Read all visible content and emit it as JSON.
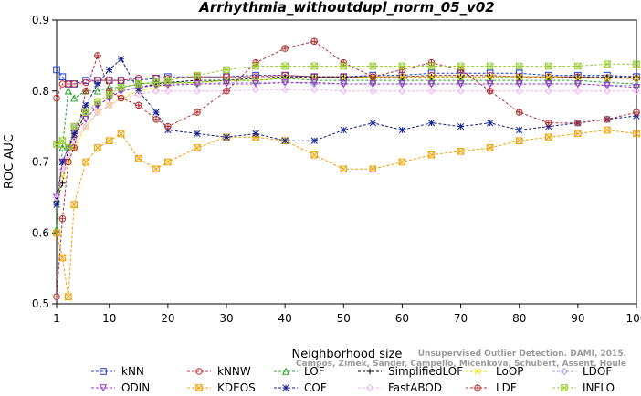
{
  "chart_data": {
    "type": "line",
    "title": "Arrhythmia_withoutdupl_norm_05_v02",
    "xlabel": "Neighborhood size",
    "ylabel": "ROC AUC",
    "xlim": [
      1,
      100
    ],
    "ylim": [
      0.5,
      0.9
    ],
    "xticks": [
      1,
      10,
      20,
      30,
      40,
      50,
      60,
      70,
      80,
      90,
      100
    ],
    "yticks": [
      0.5,
      0.6,
      0.7,
      0.8,
      0.9
    ],
    "xtick_labels": [
      "1",
      "10",
      "20",
      "30",
      "40",
      "50",
      "60",
      "70",
      "80",
      "90",
      "100"
    ],
    "ytick_labels": [
      "0.5",
      "0.6",
      "0.7",
      "0.8",
      "0.9"
    ],
    "grid": false,
    "legend_position": "bottom",
    "x": [
      1,
      2,
      3,
      4,
      6,
      8,
      10,
      12,
      15,
      18,
      20,
      25,
      30,
      35,
      40,
      45,
      50,
      55,
      60,
      65,
      70,
      75,
      80,
      85,
      90,
      95,
      100
    ],
    "series": [
      {
        "name": "kNN",
        "color": "#1f3fd6",
        "marker": "square",
        "values": [
          0.83,
          0.82,
          0.81,
          0.81,
          0.815,
          0.815,
          0.815,
          0.815,
          0.815,
          0.818,
          0.82,
          0.82,
          0.82,
          0.822,
          0.822,
          0.82,
          0.82,
          0.822,
          0.822,
          0.825,
          0.825,
          0.825,
          0.825,
          0.822,
          0.822,
          0.822,
          0.82
        ]
      },
      {
        "name": "kNNW",
        "color": "#d62728",
        "marker": "circle",
        "values": [
          0.79,
          0.81,
          0.81,
          0.81,
          0.812,
          0.815,
          0.815,
          0.815,
          0.818,
          0.818,
          0.818,
          0.82,
          0.82,
          0.82,
          0.822,
          0.82,
          0.82,
          0.82,
          0.82,
          0.822,
          0.822,
          0.822,
          0.82,
          0.82,
          0.82,
          0.818,
          0.818
        ]
      },
      {
        "name": "LOF",
        "color": "#2ca02c",
        "marker": "triangle-up",
        "values": [
          0.605,
          0.72,
          0.8,
          0.79,
          0.8,
          0.8,
          0.805,
          0.805,
          0.81,
          0.812,
          0.812,
          0.812,
          0.815,
          0.815,
          0.818,
          0.815,
          0.815,
          0.815,
          0.815,
          0.815,
          0.815,
          0.815,
          0.815,
          0.815,
          0.815,
          0.812,
          0.81
        ]
      },
      {
        "name": "SimplifiedLOF",
        "color": "#000000",
        "marker": "plus",
        "values": [
          0.645,
          0.67,
          0.72,
          0.735,
          0.77,
          0.78,
          0.79,
          0.8,
          0.805,
          0.81,
          0.812,
          0.815,
          0.815,
          0.818,
          0.82,
          0.82,
          0.82,
          0.82,
          0.82,
          0.82,
          0.82,
          0.82,
          0.82,
          0.82,
          0.82,
          0.82,
          0.82
        ]
      },
      {
        "name": "LoOP",
        "color": "#e8e000",
        "marker": "x",
        "values": [
          0.64,
          0.68,
          0.7,
          0.72,
          0.75,
          0.77,
          0.78,
          0.79,
          0.8,
          0.805,
          0.81,
          0.812,
          0.815,
          0.815,
          0.818,
          0.818,
          0.818,
          0.82,
          0.82,
          0.82,
          0.82,
          0.82,
          0.82,
          0.82,
          0.818,
          0.818,
          0.818
        ]
      },
      {
        "name": "LDOF",
        "color": "#a0a0e0",
        "marker": "diamond",
        "values": [
          0.64,
          0.7,
          0.72,
          0.75,
          0.77,
          0.78,
          0.79,
          0.8,
          0.805,
          0.808,
          0.81,
          0.81,
          0.812,
          0.812,
          0.812,
          0.81,
          0.81,
          0.81,
          0.81,
          0.81,
          0.81,
          0.81,
          0.81,
          0.81,
          0.81,
          0.808,
          0.808
        ]
      },
      {
        "name": "ODIN",
        "color": "#9b30c9",
        "marker": "triangle-down",
        "values": [
          0.65,
          0.7,
          0.72,
          0.74,
          0.76,
          0.78,
          0.79,
          0.8,
          0.805,
          0.808,
          0.808,
          0.81,
          0.81,
          0.81,
          0.812,
          0.812,
          0.81,
          0.81,
          0.81,
          0.81,
          0.81,
          0.81,
          0.81,
          0.81,
          0.81,
          0.808,
          0.805
        ]
      },
      {
        "name": "KDEOS",
        "color": "#f0a000",
        "marker": "square-x",
        "values": [
          0.6,
          0.565,
          0.51,
          0.64,
          0.7,
          0.72,
          0.73,
          0.74,
          0.705,
          0.69,
          0.7,
          0.72,
          0.735,
          0.735,
          0.73,
          0.71,
          0.69,
          0.69,
          0.7,
          0.71,
          0.715,
          0.72,
          0.73,
          0.735,
          0.74,
          0.745,
          0.74
        ]
      },
      {
        "name": "COF",
        "color": "#10208f",
        "marker": "asterisk",
        "values": [
          0.64,
          0.7,
          0.72,
          0.74,
          0.78,
          0.81,
          0.83,
          0.845,
          0.8,
          0.77,
          0.745,
          0.74,
          0.735,
          0.74,
          0.73,
          0.73,
          0.745,
          0.755,
          0.745,
          0.755,
          0.75,
          0.755,
          0.745,
          0.75,
          0.755,
          0.76,
          0.765
        ]
      },
      {
        "name": "FastABOD",
        "color": "#f0b0f0",
        "marker": "diamond",
        "values": [
          0.65,
          0.69,
          0.71,
          0.73,
          0.75,
          0.77,
          0.78,
          0.79,
          0.795,
          0.8,
          0.8,
          0.8,
          0.8,
          0.802,
          0.802,
          0.802,
          0.8,
          0.8,
          0.8,
          0.8,
          0.8,
          0.8,
          0.8,
          0.8,
          0.8,
          0.8,
          0.8
        ]
      },
      {
        "name": "LDF",
        "color": "#b03030",
        "marker": "circle-plus",
        "values": [
          0.51,
          0.62,
          0.7,
          0.72,
          0.8,
          0.85,
          0.8,
          0.79,
          0.78,
          0.76,
          0.75,
          0.77,
          0.8,
          0.84,
          0.86,
          0.87,
          0.84,
          0.82,
          0.83,
          0.84,
          0.83,
          0.8,
          0.77,
          0.755,
          0.755,
          0.76,
          0.77
        ]
      },
      {
        "name": "INFLO",
        "color": "#9acd32",
        "marker": "star-box",
        "values": [
          0.725,
          0.73,
          0.72,
          0.75,
          0.77,
          0.785,
          0.795,
          0.805,
          0.81,
          0.812,
          0.815,
          0.822,
          0.83,
          0.835,
          0.835,
          0.835,
          0.835,
          0.835,
          0.835,
          0.835,
          0.835,
          0.835,
          0.835,
          0.835,
          0.835,
          0.838,
          0.838
        ]
      }
    ]
  },
  "watermark": {
    "line1": "Unsupervised Outlier Detection. DAMI, 2015.",
    "line2": "Campos, Zimek, Sander, Campello, Micenkova, Schubert, Assent, Houle"
  }
}
